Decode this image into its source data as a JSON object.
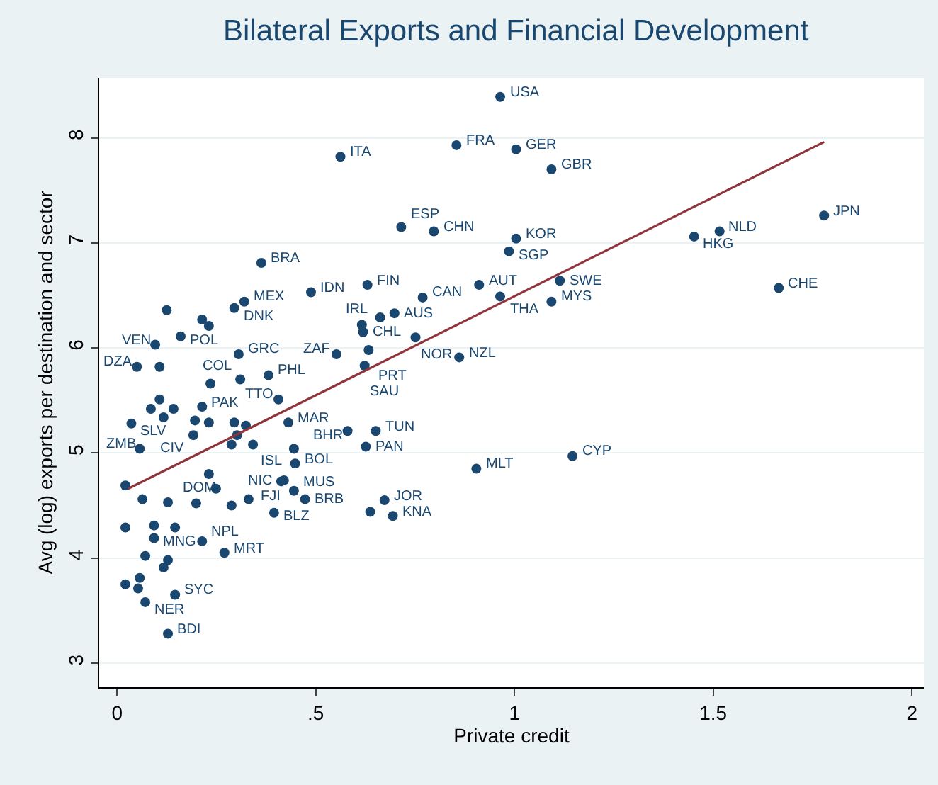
{
  "chart_data": {
    "type": "scatter",
    "title": "Bilateral Exports and Financial Development",
    "xlabel": "Private credit",
    "ylabel": "Avg (log) exports per destination and sector",
    "xlim": [
      -0.045,
      2.03
    ],
    "ylim": [
      2.77,
      8.57
    ],
    "xticks": [
      0,
      {
        "value": 0.5,
        "label": ".5"
      },
      1,
      1.5,
      2
    ],
    "yticks": [
      3,
      4,
      5,
      6,
      7,
      8
    ],
    "grid": "y",
    "marker": "circle",
    "series": [
      {
        "color": "#1a476f",
        "x": [
          0.964,
          0.854,
          1.004,
          1.093,
          0.562,
          0.715,
          0.797,
          1.004,
          0.986,
          1.452,
          1.516,
          1.779,
          1.665,
          1.114,
          1.093,
          0.911,
          0.964,
          0.769,
          0.63,
          0.488,
          0.363,
          0.698,
          0.662,
          0.616,
          0.619,
          0.751,
          0.552,
          0.633,
          0.623,
          0.861,
          0.406,
          0.431,
          0.58,
          0.651,
          0.445,
          0.626,
          0.448,
          0.904,
          1.146,
          0.42,
          0.445,
          0.473,
          0.395,
          0.673,
          0.637,
          0.694,
          0.32,
          0.295,
          0.231,
          0.125,
          0.214,
          0.16,
          0.096,
          0.05,
          0.107,
          0.306,
          0.381,
          0.31,
          0.235,
          0.107,
          0.214,
          0.085,
          0.142,
          0.036,
          0.117,
          0.196,
          0.231,
          0.295,
          0.324,
          0.192,
          0.302,
          0.288,
          0.342,
          0.057,
          0.021,
          0.231,
          0.413,
          0.288,
          0.331,
          0.249,
          0.064,
          0.128,
          0.199,
          0.021,
          0.093,
          0.146,
          0.27,
          0.214,
          0.093,
          0.071,
          0.128,
          0.117,
          0.057,
          0.021,
          0.053,
          0.071,
          0.146,
          0.128
        ],
        "values": [
          8.39,
          7.93,
          7.89,
          7.7,
          7.82,
          7.15,
          7.11,
          7.04,
          6.92,
          7.06,
          7.11,
          7.26,
          6.57,
          6.64,
          6.44,
          6.6,
          6.49,
          6.48,
          6.6,
          6.53,
          6.81,
          6.33,
          6.29,
          6.22,
          6.15,
          6.1,
          5.94,
          5.98,
          5.83,
          5.91,
          5.51,
          5.29,
          5.21,
          5.21,
          5.04,
          5.06,
          4.9,
          4.85,
          4.97,
          4.74,
          4.64,
          4.56,
          4.43,
          4.55,
          4.44,
          4.4,
          6.44,
          6.38,
          6.21,
          6.36,
          6.27,
          6.11,
          6.03,
          5.82,
          5.82,
          5.94,
          5.74,
          5.7,
          5.66,
          5.51,
          5.44,
          5.42,
          5.42,
          5.28,
          5.34,
          5.31,
          5.29,
          5.29,
          5.26,
          5.17,
          5.17,
          5.08,
          5.08,
          5.04,
          4.69,
          4.8,
          4.73,
          4.5,
          4.56,
          4.66,
          4.56,
          4.53,
          4.52,
          4.29,
          4.31,
          4.29,
          4.05,
          4.16,
          4.19,
          4.02,
          3.98,
          3.91,
          3.81,
          3.75,
          3.71,
          3.58,
          3.65,
          3.28
        ],
        "value_labels": [
          "USA",
          "FRA",
          "GER",
          "GBR",
          "ITA",
          "ESP",
          "CHN",
          "KOR",
          "SGP",
          "HKG",
          "NLD",
          "JPN",
          "CHE",
          "SWE",
          "MYS",
          "AUT",
          "THA",
          "CAN",
          "FIN",
          "IDN",
          "BRA",
          "AUS",
          "IRL",
          null,
          "CHL",
          "NOR",
          "ZAF",
          "PRT",
          "SAU",
          "NZL",
          "TTO",
          "MAR",
          "BHR",
          "TUN",
          "ISL",
          "PAN",
          "BOL",
          "MLT",
          "CYP",
          "FJI",
          "MUS",
          "BRB",
          "BLZ",
          "JOR",
          null,
          "KNA",
          "MEX",
          "DNK",
          null,
          null,
          null,
          "POL",
          "VEN",
          "DZA",
          null,
          "GRC",
          "PHL",
          "COL",
          null,
          null,
          "PAK",
          null,
          null,
          "SLV",
          null,
          null,
          null,
          null,
          null,
          "CIV",
          null,
          null,
          null,
          "ZMB",
          null,
          null,
          "NIC",
          null,
          null,
          "DOM",
          null,
          null,
          null,
          null,
          null,
          null,
          "MRT",
          "NPL",
          "MNG",
          null,
          null,
          null,
          null,
          null,
          null,
          "NER",
          "SYC",
          "BDI"
        ]
      },
      {
        "type": "line",
        "marker": "none",
        "color": "#90353b",
        "x": [
          0.028,
          1.779
        ],
        "values": [
          4.66,
          7.96
        ]
      }
    ]
  }
}
